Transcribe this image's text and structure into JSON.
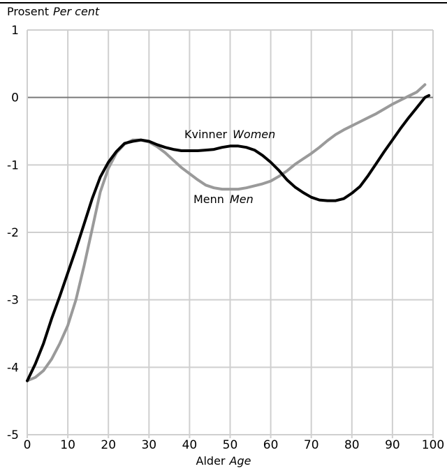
{
  "chart_data": {
    "type": "line",
    "title": "",
    "ylabel": {
      "primary": "Prosent",
      "secondary": "Per cent"
    },
    "xlabel": {
      "primary": "Alder",
      "secondary": "Age"
    },
    "xlim": [
      0,
      100
    ],
    "ylim": [
      -5,
      1
    ],
    "xticks": [
      0,
      10,
      20,
      30,
      40,
      50,
      60,
      70,
      80,
      90,
      100
    ],
    "yticks": [
      1,
      0,
      -1,
      -2,
      -3,
      -4,
      -5
    ],
    "grid": true,
    "legend": "none (series labelled directly on lines)",
    "series": [
      {
        "name": "Kvinner Women",
        "label_primary": "Kvinner",
        "label_secondary": "Women",
        "color": "#000000",
        "x": [
          0,
          2,
          4,
          6,
          8,
          10,
          12,
          14,
          16,
          18,
          20,
          22,
          24,
          26,
          28,
          30,
          32,
          34,
          36,
          38,
          40,
          42,
          44,
          46,
          48,
          50,
          52,
          54,
          56,
          58,
          60,
          62,
          64,
          66,
          68,
          70,
          72,
          74,
          76,
          78,
          80,
          82,
          84,
          86,
          88,
          90,
          92,
          94,
          96,
          98,
          99
        ],
        "y": [
          -4.2,
          -3.95,
          -3.65,
          -3.28,
          -2.95,
          -2.6,
          -2.25,
          -1.88,
          -1.5,
          -1.18,
          -0.96,
          -0.8,
          -0.68,
          -0.65,
          -0.63,
          -0.65,
          -0.7,
          -0.74,
          -0.77,
          -0.79,
          -0.79,
          -0.79,
          -0.78,
          -0.77,
          -0.74,
          -0.72,
          -0.72,
          -0.74,
          -0.78,
          -0.86,
          -0.96,
          -1.08,
          -1.22,
          -1.33,
          -1.41,
          -1.48,
          -1.52,
          -1.53,
          -1.53,
          -1.5,
          -1.42,
          -1.32,
          -1.16,
          -0.98,
          -0.8,
          -0.63,
          -0.46,
          -0.3,
          -0.15,
          0.0,
          0.03
        ]
      },
      {
        "name": "Menn Men",
        "label_primary": "Menn",
        "label_secondary": "Men",
        "color": "#9a9a9a",
        "x": [
          0,
          2,
          4,
          6,
          8,
          10,
          12,
          14,
          16,
          18,
          20,
          22,
          24,
          26,
          28,
          30,
          32,
          34,
          36,
          38,
          40,
          42,
          44,
          46,
          48,
          50,
          52,
          54,
          56,
          58,
          60,
          62,
          64,
          66,
          68,
          70,
          72,
          74,
          76,
          78,
          80,
          82,
          84,
          86,
          88,
          90,
          92,
          94,
          96,
          98
        ],
        "y": [
          -4.2,
          -4.15,
          -4.05,
          -3.88,
          -3.65,
          -3.38,
          -3.0,
          -2.5,
          -1.95,
          -1.4,
          -1.05,
          -0.82,
          -0.69,
          -0.63,
          -0.63,
          -0.66,
          -0.73,
          -0.82,
          -0.93,
          -1.04,
          -1.13,
          -1.22,
          -1.3,
          -1.34,
          -1.36,
          -1.36,
          -1.36,
          -1.34,
          -1.31,
          -1.28,
          -1.24,
          -1.17,
          -1.09,
          -0.99,
          -0.91,
          -0.83,
          -0.74,
          -0.64,
          -0.55,
          -0.48,
          -0.42,
          -0.36,
          -0.3,
          -0.24,
          -0.17,
          -0.1,
          -0.04,
          0.02,
          0.08,
          0.19
        ]
      }
    ]
  }
}
